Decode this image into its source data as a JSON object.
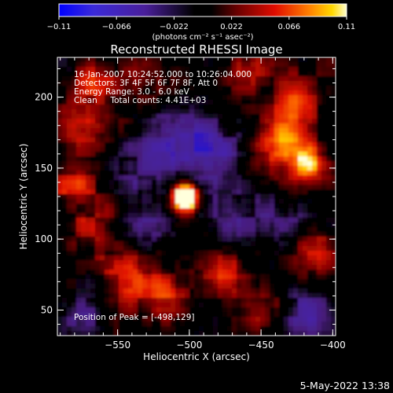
{
  "colorbar": {
    "tick_labels": [
      "-0.11",
      "-0.066",
      "-0.022",
      "0.022",
      "0.066",
      "0.11"
    ],
    "unit_label": "(photons cm⁻² s⁻¹ asec⁻²)"
  },
  "title": "Reconstructed RHESSI Image",
  "info_lines": [
    "16-Jan-2007 10:24:52.000 to 10:26:04.000",
    "Detectors: 3F 4F 5F 6F 7F 8F, Att 0",
    "Energy Range: 3.0 - 6.0 keV",
    "Clean     Total counts: 4.41E+03"
  ],
  "peak_text": "Position of Peak = [-498,129]",
  "axes": {
    "x_label": "Heliocentric X (arcsec)",
    "y_label": "Heliocentric Y (arcsec)",
    "x_range": [
      -592,
      -398
    ],
    "y_range": [
      32,
      228
    ],
    "x_ticks": [
      -550,
      -500,
      -450,
      -400
    ],
    "y_ticks": [
      50,
      100,
      150,
      200
    ],
    "x_tick_labels": [
      "−550",
      "−500",
      "−450",
      "−400"
    ],
    "y_tick_labels": [
      "50",
      "100",
      "150",
      "200"
    ]
  },
  "colors": {
    "cmap": [
      "#0000ff",
      "#4a1fb0",
      "#3a1a6e",
      "#000000",
      "#7a0000",
      "#e01000",
      "#ff7000",
      "#ffd000",
      "#ffffe0"
    ]
  },
  "footer_date": "5-May-2022 13:38"
}
